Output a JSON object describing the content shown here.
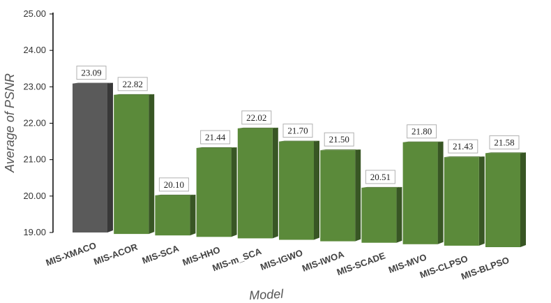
{
  "chart_data": {
    "type": "bar",
    "title": "",
    "xlabel": "Model",
    "ylabel": "Average of PSNR",
    "ylim": [
      19.0,
      25.0
    ],
    "yticks": [
      "19.00",
      "20.00",
      "21.00",
      "22.00",
      "23.00",
      "24.00",
      "25.00"
    ],
    "categories": [
      "MIS-XMACO",
      "MIS-ACOR",
      "MIS-SCA",
      "MIS-HHO",
      "MIS-m_SCA",
      "MIS-IGWO",
      "MIS-IWOA",
      "MIS-SCADE",
      "MIS-MVO",
      "MIS-CLPSO",
      "MIS-BLPSO"
    ],
    "values": [
      23.09,
      22.82,
      20.1,
      21.44,
      22.02,
      21.7,
      21.5,
      20.51,
      21.8,
      21.43,
      21.58
    ],
    "data_labels": [
      "23.09",
      "22.82",
      "20.10",
      "21.44",
      "22.02",
      "21.70",
      "21.50",
      "20.51",
      "21.80",
      "21.43",
      "21.58"
    ],
    "grid": false,
    "legend": "none",
    "style": "3d-column",
    "colors": {
      "highlight": "#5a5a5a",
      "default": "#5b8a3a",
      "axis": "#000000"
    }
  }
}
